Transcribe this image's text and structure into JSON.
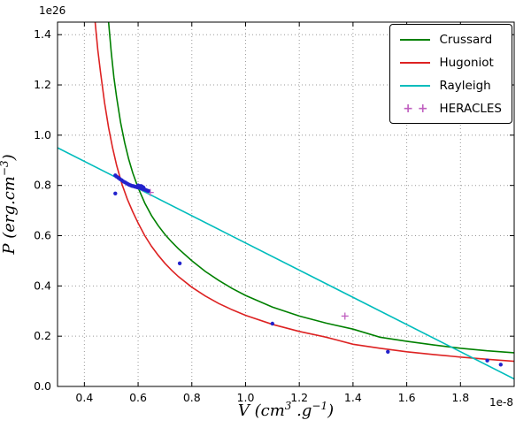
{
  "figure": {
    "background": "#ffffff"
  },
  "chart_data": {
    "type": "line",
    "title": "",
    "y_offset": "1e26",
    "x_offset": "1e-8",
    "xlabel_parts": {
      "p1": "V  (cm",
      "sup1": "3",
      "p2": " .g",
      "sup2": "−1",
      "p3": ")"
    },
    "ylabel_parts": {
      "p1": "P  (erg.cm",
      "sup1": "−3",
      "p2": ")"
    },
    "xlim": [
      0.3,
      2.0
    ],
    "ylim": [
      0.0,
      1.45
    ],
    "x_ticks": [
      0.4,
      0.6,
      0.8,
      1.0,
      1.2,
      1.4,
      1.6,
      1.8
    ],
    "x_tick_labels": [
      "0.4",
      "0.6",
      "0.8",
      "1.0",
      "1.2",
      "1.4",
      "1.6",
      "1.8"
    ],
    "y_ticks": [
      0.0,
      0.2,
      0.4,
      0.6,
      0.8,
      1.0,
      1.2,
      1.4
    ],
    "y_tick_labels": [
      "0.0",
      "0.2",
      "0.4",
      "0.6",
      "0.8",
      "1.0",
      "1.2",
      "1.4"
    ],
    "grid": true,
    "legend_position": "upper right",
    "series": [
      {
        "name": "Crussard",
        "type": "line",
        "color": "#008000",
        "in_legend": true,
        "legend_marker": "line",
        "x": [
          0.49,
          0.5,
          0.51,
          0.52,
          0.535,
          0.55,
          0.565,
          0.58,
          0.6,
          0.625,
          0.65,
          0.675,
          0.7,
          0.725,
          0.75,
          0.8,
          0.85,
          0.9,
          0.95,
          1.0,
          1.1,
          1.2,
          1.3,
          1.4,
          1.5,
          1.6,
          1.7,
          1.8,
          1.9,
          2.0
        ],
        "y": [
          1.45,
          1.33,
          1.23,
          1.15,
          1.05,
          0.97,
          0.905,
          0.85,
          0.79,
          0.73,
          0.68,
          0.64,
          0.605,
          0.575,
          0.548,
          0.5,
          0.458,
          0.422,
          0.39,
          0.362,
          0.316,
          0.28,
          0.252,
          0.228,
          0.196,
          0.18,
          0.165,
          0.152,
          0.142,
          0.134
        ]
      },
      {
        "name": "Hugoniot",
        "type": "line",
        "color": "#dd2222",
        "in_legend": true,
        "legend_marker": "line",
        "x": [
          0.44,
          0.45,
          0.46,
          0.475,
          0.49,
          0.505,
          0.52,
          0.54,
          0.56,
          0.58,
          0.6,
          0.625,
          0.65,
          0.675,
          0.7,
          0.725,
          0.75,
          0.8,
          0.85,
          0.9,
          0.95,
          1.0,
          1.1,
          1.2,
          1.3,
          1.4,
          1.5,
          1.6,
          1.7,
          1.8,
          1.9,
          2.0
        ],
        "y": [
          1.45,
          1.34,
          1.25,
          1.13,
          1.03,
          0.95,
          0.88,
          0.805,
          0.745,
          0.695,
          0.65,
          0.6,
          0.558,
          0.522,
          0.49,
          0.462,
          0.437,
          0.395,
          0.36,
          0.33,
          0.305,
          0.283,
          0.247,
          0.219,
          0.196,
          0.168,
          0.152,
          0.138,
          0.127,
          0.117,
          0.108,
          0.1
        ]
      },
      {
        "name": "Rayleigh",
        "type": "line",
        "color": "#00bcbc",
        "in_legend": true,
        "legend_marker": "line",
        "x": [
          0.3,
          2.0
        ],
        "y": [
          0.95,
          0.03
        ]
      },
      {
        "name": "HERACLES",
        "type": "scatter_plus",
        "color": "#c060c0",
        "in_legend": true,
        "legend_marker": "plus",
        "x": [
          0.615,
          0.645,
          1.37
        ],
        "y": [
          0.79,
          0.772,
          0.28
        ]
      },
      {
        "name": "simulation-points",
        "type": "scatter_dot",
        "color": "#2222cc",
        "in_legend": false,
        "x": [
          0.515,
          0.52,
          0.527,
          0.533,
          0.54,
          0.546,
          0.552,
          0.558,
          0.563,
          0.568,
          0.573,
          0.578,
          0.583,
          0.588,
          0.593,
          0.598,
          0.603,
          0.608,
          0.613,
          0.618,
          0.623,
          0.628,
          0.633,
          0.638,
          0.515,
          0.6,
          0.605,
          0.61,
          0.615,
          0.62,
          0.755,
          1.1,
          1.53,
          1.9,
          1.95
        ],
        "y": [
          0.84,
          0.835,
          0.83,
          0.825,
          0.82,
          0.815,
          0.812,
          0.808,
          0.805,
          0.802,
          0.8,
          0.798,
          0.797,
          0.795,
          0.794,
          0.792,
          0.791,
          0.79,
          0.788,
          0.786,
          0.784,
          0.782,
          0.78,
          0.778,
          0.768,
          0.8,
          0.796,
          0.798,
          0.795,
          0.792,
          0.49,
          0.25,
          0.138,
          0.103,
          0.087
        ]
      }
    ]
  }
}
